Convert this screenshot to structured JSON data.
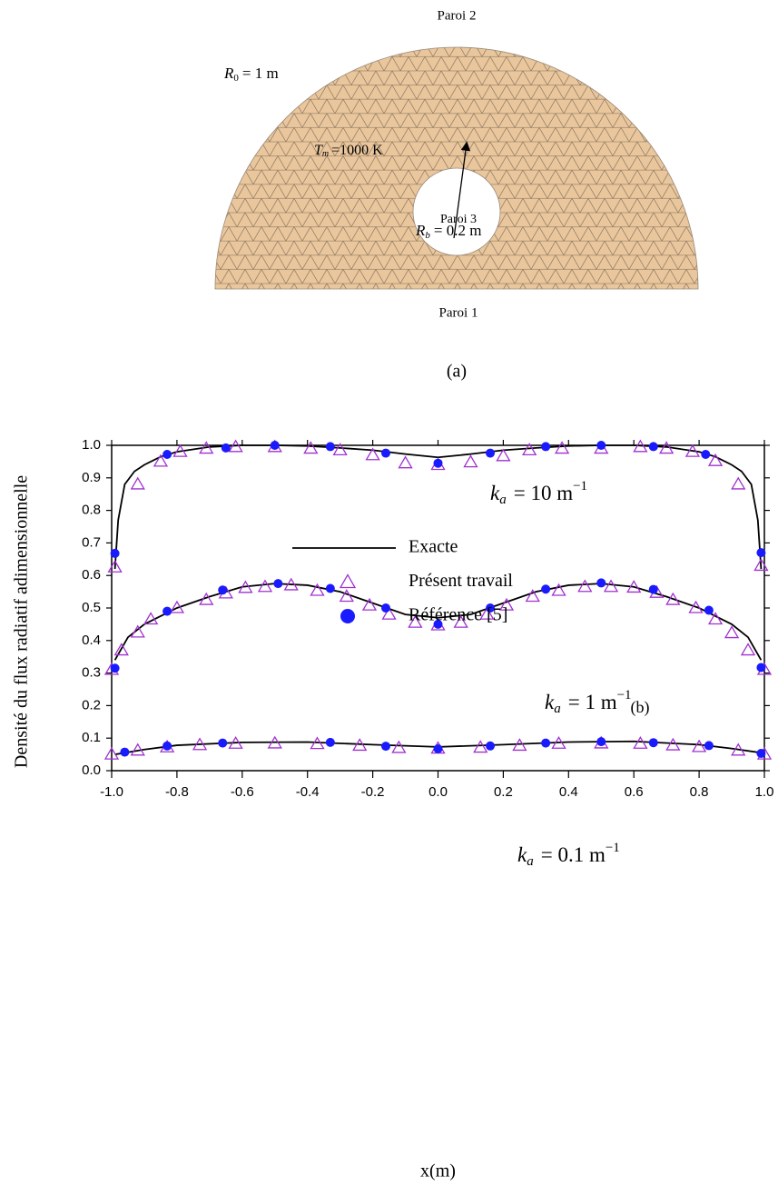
{
  "diagram": {
    "paroi2": "Paroi 2",
    "r0": {
      "symbol": "R",
      "sub": "0",
      "rest": "= 1 m"
    },
    "tm": {
      "symbol": "T",
      "sub": "m",
      "rest": "=1000 K"
    },
    "rb": {
      "symbol": "R",
      "sub": "b",
      "rest": "= 0.2 m"
    },
    "paroi3": "Paroi 3",
    "paroi1": "Paroi 1",
    "caption": "(a)"
  },
  "chart_data": {
    "type": "line",
    "caption": "(b)",
    "x_label": "x(m)",
    "y_label": "Densité du flux radiatif adimensionnelle",
    "xlim": [
      -1.0,
      1.0
    ],
    "ylim": [
      0.0,
      1.0
    ],
    "xticks": [
      {
        "value": -1.0,
        "label": "-1.0"
      },
      {
        "value": -0.8,
        "label": "-0.8"
      },
      {
        "value": -0.6,
        "label": "-0.6"
      },
      {
        "value": -0.4,
        "label": "-0.4"
      },
      {
        "value": -0.2,
        "label": "-0.2"
      },
      {
        "value": 0,
        "label": "0.0"
      },
      0.2,
      0.4,
      0.6,
      0.8,
      {
        "value": 1.0,
        "label": "1.0"
      }
    ],
    "yticks": [
      {
        "value": 0,
        "label": "0.0"
      },
      0.1,
      0.2,
      0.3,
      0.4,
      0.5,
      0.6,
      0.7,
      0.8,
      0.9,
      {
        "value": 1.0,
        "label": "1.0"
      }
    ],
    "annotations": [
      {
        "symbol": "k",
        "sub": "a",
        "rest": "= 10 m",
        "sup": "−1"
      },
      {
        "symbol": "k",
        "sub": "a",
        "rest": "= 1 m",
        "sup": "−1"
      },
      {
        "symbol": "k",
        "sub": "a",
        "rest": "= 0.1 m",
        "sup": "−1"
      }
    ],
    "series": [
      {
        "name": "Exacte",
        "color": "#000000",
        "marker": "line",
        "curves": [
          {
            "x": [
              -0.99,
              -0.98,
              -0.96,
              -0.93,
              -0.9,
              -0.85,
              -0.8,
              -0.7,
              -0.6,
              -0.5,
              -0.4,
              -0.3,
              -0.2,
              -0.1,
              0,
              0.1,
              0.2,
              0.3,
              0.4,
              0.5,
              0.6,
              0.7,
              0.8,
              0.85,
              0.9,
              0.93,
              0.96,
              0.98,
              0.99
            ],
            "values": [
              0.62,
              0.77,
              0.88,
              0.92,
              0.94,
              0.965,
              0.98,
              0.995,
              1.0,
              1.0,
              0.998,
              0.992,
              0.985,
              0.973,
              0.963,
              0.973,
              0.985,
              0.992,
              0.998,
              1.0,
              1.0,
              0.995,
              0.98,
              0.965,
              0.94,
              0.92,
              0.88,
              0.77,
              0.62
            ]
          },
          {
            "x": [
              -0.99,
              -0.95,
              -0.9,
              -0.8,
              -0.7,
              -0.6,
              -0.5,
              -0.4,
              -0.3,
              -0.2,
              -0.1,
              0,
              0.1,
              0.2,
              0.3,
              0.4,
              0.5,
              0.6,
              0.7,
              0.8,
              0.9,
              0.95,
              0.99
            ],
            "values": [
              0.34,
              0.41,
              0.45,
              0.5,
              0.535,
              0.565,
              0.575,
              0.57,
              0.55,
              0.515,
              0.48,
              0.47,
              0.48,
              0.515,
              0.55,
              0.57,
              0.575,
              0.565,
              0.535,
              0.5,
              0.45,
              0.41,
              0.34
            ]
          },
          {
            "x": [
              -0.99,
              -0.9,
              -0.8,
              -0.6,
              -0.4,
              -0.2,
              0,
              0.2,
              0.4,
              0.6,
              0.8,
              0.9,
              0.99
            ],
            "values": [
              0.05,
              0.065,
              0.078,
              0.087,
              0.088,
              0.08,
              0.073,
              0.08,
              0.088,
              0.09,
              0.08,
              0.068,
              0.055
            ]
          }
        ]
      },
      {
        "name": "Présent travail",
        "color": "#a030d0",
        "marker": "triangle",
        "curves": [
          {
            "x": [
              -0.99,
              -0.92,
              -0.85,
              -0.79,
              -0.71,
              -0.62,
              -0.5,
              -0.39,
              -0.3,
              -0.2,
              -0.1,
              0,
              0.1,
              0.2,
              0.28,
              0.38,
              0.5,
              0.62,
              0.7,
              0.78,
              0.85,
              0.92,
              0.99
            ],
            "values": [
              0.625,
              0.88,
              0.95,
              0.98,
              0.99,
              0.995,
              0.995,
              0.99,
              0.985,
              0.97,
              0.945,
              0.94,
              0.948,
              0.967,
              0.985,
              0.99,
              0.99,
              0.995,
              0.99,
              0.98,
              0.952,
              0.88,
              0.63
            ]
          },
          {
            "x": [
              -1.0,
              -0.97,
              -0.92,
              -0.88,
              -0.8,
              -0.71,
              -0.65,
              -0.59,
              -0.53,
              -0.45,
              -0.37,
              -0.28,
              -0.21,
              -0.15,
              -0.07,
              0,
              0.07,
              0.15,
              0.21,
              0.29,
              0.37,
              0.45,
              0.53,
              0.6,
              0.67,
              0.72,
              0.79,
              0.85,
              0.9,
              0.95,
              1.0
            ],
            "values": [
              0.31,
              0.37,
              0.425,
              0.465,
              0.5,
              0.525,
              0.545,
              0.562,
              0.565,
              0.57,
              0.553,
              0.535,
              0.508,
              0.48,
              0.455,
              0.447,
              0.455,
              0.48,
              0.508,
              0.535,
              0.553,
              0.565,
              0.565,
              0.563,
              0.547,
              0.525,
              0.5,
              0.465,
              0.423,
              0.37,
              0.31
            ]
          },
          {
            "x": [
              -1.0,
              -0.92,
              -0.83,
              -0.73,
              -0.62,
              -0.5,
              -0.37,
              -0.24,
              -0.12,
              0,
              0.13,
              0.25,
              0.37,
              0.5,
              0.62,
              0.72,
              0.8,
              0.92,
              1.0
            ],
            "values": [
              0.05,
              0.062,
              0.072,
              0.079,
              0.083,
              0.084,
              0.082,
              0.077,
              0.07,
              0.068,
              0.071,
              0.077,
              0.083,
              0.084,
              0.083,
              0.078,
              0.073,
              0.062,
              0.05
            ]
          }
        ]
      },
      {
        "name": "Référence [5]",
        "color": "#1a1aff",
        "marker": "circle",
        "curves": [
          {
            "x": [
              -0.99,
              -0.83,
              -0.65,
              -0.5,
              -0.33,
              -0.16,
              0,
              0.16,
              0.33,
              0.5,
              0.66,
              0.82,
              0.99
            ],
            "values": [
              0.668,
              0.972,
              0.992,
              1.0,
              0.996,
              0.976,
              0.945,
              0.976,
              0.996,
              1.0,
              0.996,
              0.972,
              0.67
            ]
          },
          {
            "x": [
              -0.99,
              -0.83,
              -0.66,
              -0.49,
              -0.33,
              -0.16,
              0,
              0.16,
              0.33,
              0.5,
              0.66,
              0.83,
              0.99
            ],
            "values": [
              0.315,
              0.49,
              0.555,
              0.575,
              0.56,
              0.5,
              0.45,
              0.5,
              0.558,
              0.577,
              0.557,
              0.493,
              0.317
            ]
          },
          {
            "x": [
              -0.96,
              -0.83,
              -0.66,
              -0.33,
              -0.16,
              0,
              0.16,
              0.33,
              0.5,
              0.66,
              0.83,
              0.99
            ],
            "values": [
              0.057,
              0.076,
              0.085,
              0.087,
              0.075,
              0.067,
              0.076,
              0.085,
              0.089,
              0.086,
              0.077,
              0.053
            ]
          }
        ]
      }
    ]
  }
}
